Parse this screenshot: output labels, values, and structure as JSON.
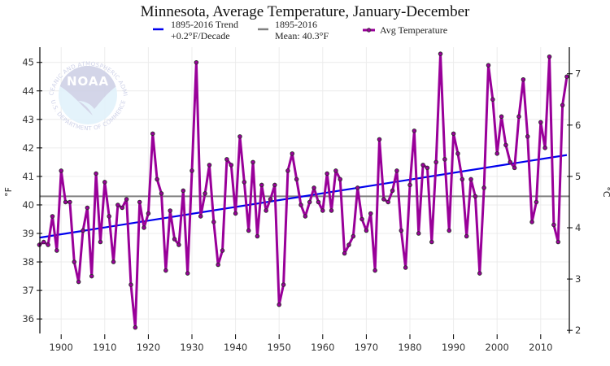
{
  "chart_data": {
    "type": "line",
    "title": "Minnesota, Average Temperature, January-December",
    "xlabel": "",
    "ylabel": "°F",
    "ylabel_right": "°C",
    "xlim": [
      1895,
      2016
    ],
    "ylim": [
      35.6,
      45.5
    ],
    "ylim_right_celsius": [
      2.0,
      7.5
    ],
    "x_ticks": [
      1900,
      1910,
      1920,
      1930,
      1940,
      1950,
      1960,
      1970,
      1980,
      1990,
      2000,
      2010
    ],
    "y_ticks": [
      36,
      37,
      38,
      39,
      40,
      41,
      42,
      43,
      44,
      45
    ],
    "y_ticks_right": [
      2,
      3,
      4,
      5,
      6,
      7
    ],
    "grid": true,
    "legend_position": "top",
    "legend": [
      {
        "name": "1895-2016 Trend",
        "line2": "+0.2°F/Decade",
        "color": "#0000ee",
        "kind": "trend"
      },
      {
        "name": "1895-2016",
        "line2": "Mean: 40.3°F",
        "color": "#808080",
        "kind": "mean"
      },
      {
        "name": "Avg Temperature",
        "line2": "",
        "color": "#990099",
        "kind": "series"
      }
    ],
    "mean": 40.3,
    "trend": {
      "start_year": 1895,
      "start_value": 38.85,
      "end_year": 2016,
      "end_value": 41.75
    },
    "series": [
      {
        "name": "Avg Temperature",
        "color": "#990099",
        "x": [
          1895,
          1896,
          1897,
          1898,
          1899,
          1900,
          1901,
          1902,
          1903,
          1904,
          1905,
          1906,
          1907,
          1908,
          1909,
          1910,
          1911,
          1912,
          1913,
          1914,
          1915,
          1916,
          1917,
          1918,
          1919,
          1920,
          1921,
          1922,
          1923,
          1924,
          1925,
          1926,
          1927,
          1928,
          1929,
          1930,
          1931,
          1932,
          1933,
          1934,
          1935,
          1936,
          1937,
          1938,
          1939,
          1940,
          1941,
          1942,
          1943,
          1944,
          1945,
          1946,
          1947,
          1948,
          1949,
          1950,
          1951,
          1952,
          1953,
          1954,
          1955,
          1956,
          1957,
          1958,
          1959,
          1960,
          1961,
          1962,
          1963,
          1964,
          1965,
          1966,
          1967,
          1968,
          1969,
          1970,
          1971,
          1972,
          1973,
          1974,
          1975,
          1976,
          1977,
          1978,
          1979,
          1980,
          1981,
          1982,
          1983,
          1984,
          1985,
          1986,
          1987,
          1988,
          1989,
          1990,
          1991,
          1992,
          1993,
          1994,
          1995,
          1996,
          1997,
          1998,
          1999,
          2000,
          2001,
          2002,
          2003,
          2004,
          2005,
          2006,
          2007,
          2008,
          2009,
          2010,
          2011,
          2012,
          2013,
          2014,
          2015,
          2016
        ],
        "values": [
          38.6,
          38.7,
          38.6,
          39.6,
          38.4,
          41.2,
          40.1,
          40.1,
          38.0,
          37.3,
          39.1,
          39.9,
          37.5,
          41.1,
          38.7,
          40.8,
          39.6,
          38.0,
          40.0,
          39.9,
          40.2,
          37.2,
          35.7,
          40.1,
          39.2,
          39.7,
          42.5,
          40.9,
          40.4,
          37.7,
          39.8,
          38.8,
          38.6,
          40.5,
          37.6,
          41.2,
          45.0,
          39.6,
          40.4,
          41.4,
          39.4,
          37.9,
          38.4,
          41.6,
          41.4,
          39.7,
          42.4,
          40.8,
          39.1,
          41.5,
          38.9,
          40.7,
          39.8,
          40.2,
          40.7,
          36.5,
          37.2,
          41.2,
          41.8,
          40.9,
          40.0,
          39.6,
          40.1,
          40.6,
          40.1,
          39.8,
          41.1,
          39.8,
          41.2,
          40.9,
          38.3,
          38.6,
          38.9,
          40.6,
          39.5,
          39.1,
          39.7,
          37.7,
          42.3,
          40.2,
          40.1,
          40.5,
          41.2,
          39.1,
          37.8,
          40.7,
          42.6,
          39.0,
          41.4,
          41.3,
          38.7,
          41.5,
          45.3,
          41.6,
          39.1,
          42.5,
          41.8,
          40.9,
          38.9,
          40.9,
          40.3,
          37.6,
          40.6,
          44.9,
          43.7,
          41.8,
          43.1,
          42.1,
          41.5,
          41.3,
          43.1,
          44.4,
          42.4,
          39.4,
          40.1,
          42.9,
          42.0,
          45.2,
          39.3,
          38.7,
          43.5,
          44.5
        ]
      }
    ]
  },
  "logo": {
    "name": "NOAA",
    "ring_top": "NATIONAL OCEANIC AND ATMOSPHERIC ADMINISTRATION",
    "ring_bottom": "U.S. DEPARTMENT OF COMMERCE"
  }
}
